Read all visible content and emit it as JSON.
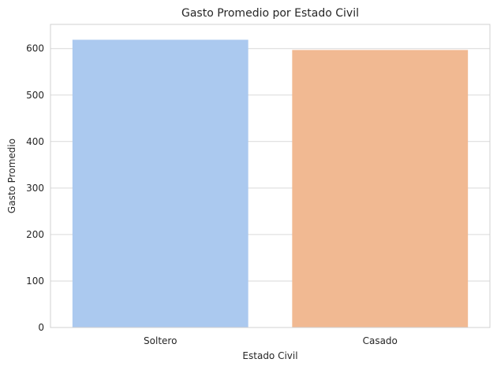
{
  "chart_data": {
    "type": "bar",
    "title": "Gasto Promedio por Estado Civil",
    "xlabel": "Estado Civil",
    "ylabel": "Gasto Promedio",
    "categories": [
      "Soltero",
      "Casado"
    ],
    "values": [
      619,
      597
    ],
    "colors": [
      "#abc9ef",
      "#f1b992"
    ],
    "ylim": [
      0,
      652
    ],
    "yticks": [
      0,
      100,
      200,
      300,
      400,
      500,
      600
    ],
    "grid": "horizontal",
    "legend": "none"
  }
}
